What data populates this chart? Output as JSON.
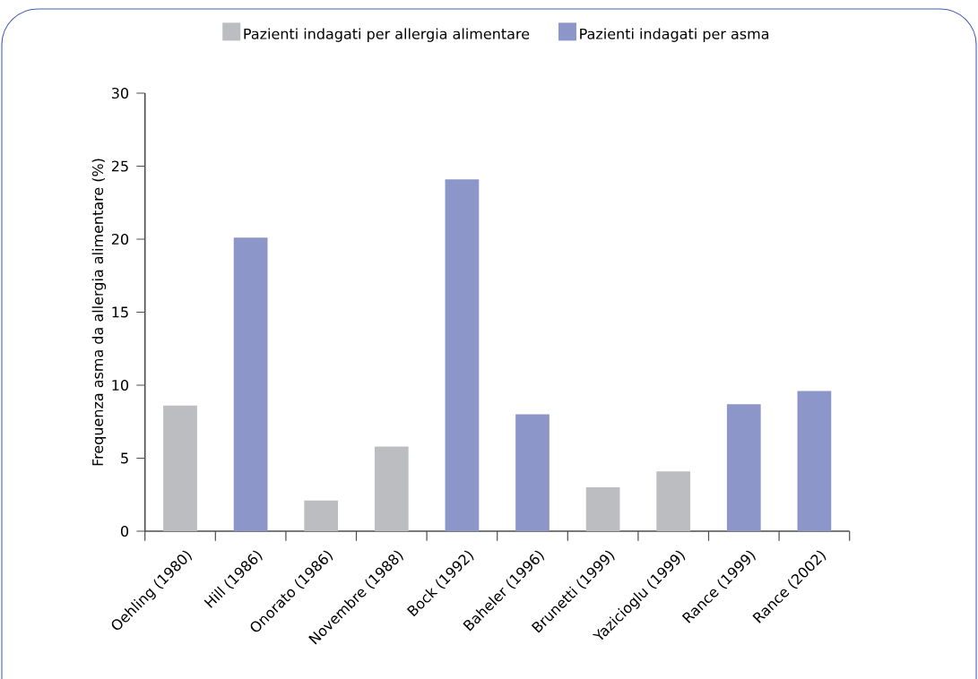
{
  "chart_data": {
    "type": "bar",
    "ylabel": "Frequenza asma da allergia alimentare (%)",
    "categories": [
      "Oehling (1980)",
      "Hill (1986)",
      "Onorato (1986)",
      "Novembre (1988)",
      "Bock (1992)",
      "Baheler (1996)",
      "Brunetti (1999)",
      "Yazicioglu (1999)",
      "Rance (1999)",
      "Rance (2002)"
    ],
    "series": [
      {
        "name": "Pazienti indagati per allergia alimentare",
        "color": "#bcbdc0",
        "values": [
          8.6,
          null,
          2.1,
          5.8,
          null,
          null,
          3.0,
          4.1,
          null,
          null
        ]
      },
      {
        "name": "Pazienti indagati per asma",
        "color": "#8c96c9",
        "values": [
          null,
          20.1,
          null,
          null,
          24.1,
          8.0,
          null,
          null,
          8.7,
          9.6
        ]
      }
    ],
    "ylim": [
      0,
      30
    ],
    "yticks": [
      0,
      5,
      10,
      15,
      20,
      25,
      30
    ],
    "grid": false,
    "legend": "top"
  }
}
